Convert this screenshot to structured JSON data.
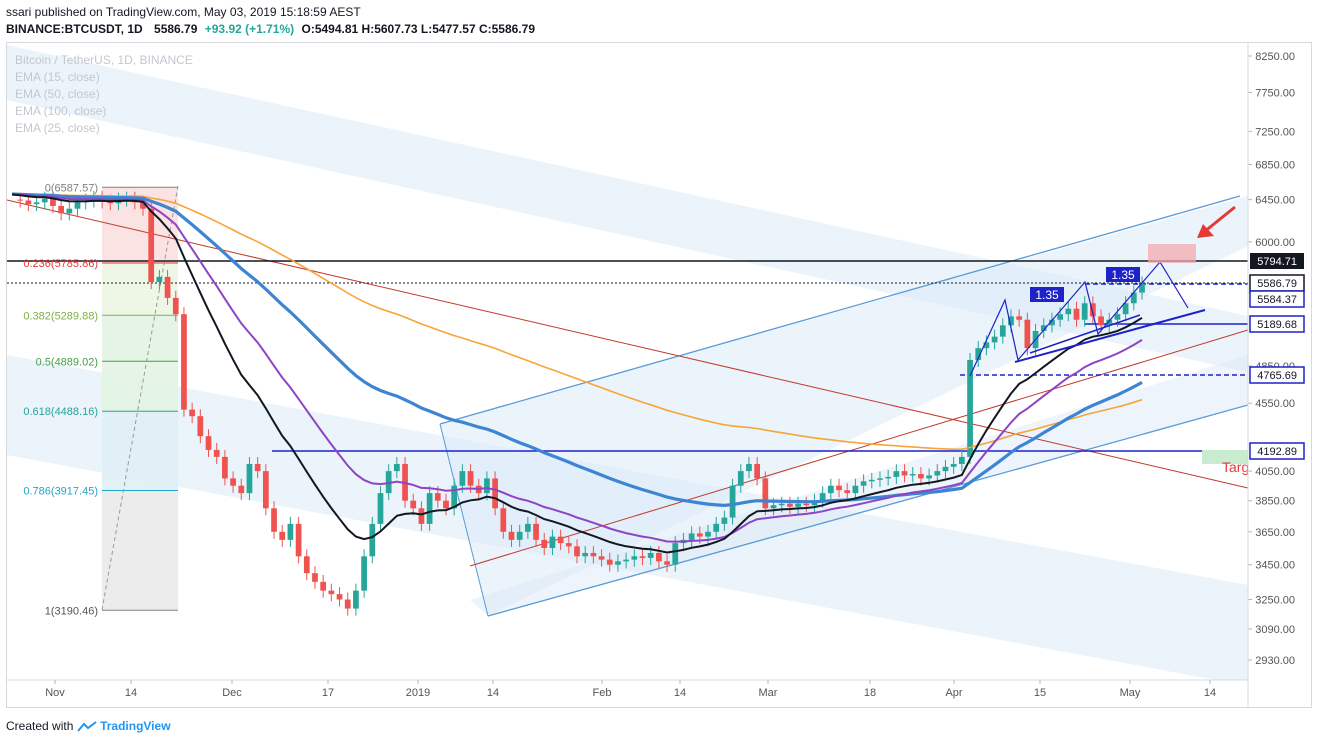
{
  "header": {
    "publisher_line": "ssari published on TradingView.com, May 03, 2019 15:18:59 AEST",
    "symbol": "BINANCE:BTCUSDT, 1D",
    "last": "5586.79",
    "change": "+93.92 (+1.71%)",
    "ohlc": "O:5494.81 H:5607.73 L:5477.57 C:5586.79"
  },
  "legend": {
    "title": "Bitcoin / TetherUS, 1D, BINANCE",
    "studies": [
      "EMA (15, close)",
      "EMA (50, close)",
      "EMA (100, close)",
      "EMA (25, close)"
    ]
  },
  "footer": {
    "prefix": "Created with",
    "brand": "TradingView"
  },
  "colors": {
    "up": "#26a69a",
    "down": "#ef5350",
    "ema15": "#131722",
    "ema25": "#8e44c4",
    "ema50": "#3d85d2",
    "ema100": "#f7a438",
    "channel": "#5b9bd5",
    "pattern": "#1e22c8",
    "level_line": "#1e22c8",
    "red_trend": "#c0392b",
    "accent": "#e53935"
  },
  "price_axis": {
    "ticks": [
      "8250.00",
      "7750.00",
      "7250.00",
      "6850.00",
      "6450.00",
      "6000.00",
      "5500.00",
      "4850.00",
      "4550.00",
      "4050.00",
      "3850.00",
      "3650.00",
      "3450.00",
      "3250.00",
      "3090.00",
      "2930.00"
    ],
    "labels": [
      {
        "text": "5794.71",
        "style": "black"
      },
      {
        "text": "5586.79",
        "style": "outline-dark"
      },
      {
        "text": "5584.37",
        "style": "blue"
      },
      {
        "text": "5189.68",
        "style": "blue"
      },
      {
        "text": "4765.69",
        "style": "blue"
      },
      {
        "text": "4192.89",
        "style": "blue"
      }
    ]
  },
  "time_axis": {
    "ticks": [
      "Nov",
      "14",
      "Dec",
      "17",
      "2019",
      "14",
      "Feb",
      "14",
      "Mar",
      "18",
      "Apr",
      "15",
      "May",
      "14"
    ]
  },
  "fib_levels": [
    {
      "label": "0(6587.57)",
      "value": 6587.57
    },
    {
      "label": "0.236(5785.86)",
      "value": 5785.86
    },
    {
      "label": "0.382(5289.88)",
      "value": 5289.88
    },
    {
      "label": "0.5(4889.02)",
      "value": 4889.02
    },
    {
      "label": "0.618(4488.16)",
      "value": 4488.16
    },
    {
      "label": "0.786(3917.45)",
      "value": 3917.45
    },
    {
      "label": "1(3190.46)",
      "value": 3190.46
    }
  ],
  "annotations": {
    "measure_left": "1.35",
    "measure_right": "1.35",
    "target": "Targ"
  },
  "chart_data": {
    "type": "candlestick",
    "title": "Bitcoin / TetherUS, 1D, BINANCE",
    "x": [
      "Nov 2018",
      "Nov 14",
      "Dec",
      "Dec 17",
      "2019",
      "Jan 14",
      "Feb",
      "Feb 14",
      "Mar",
      "Mar 18",
      "Apr",
      "Apr 15",
      "May",
      "May 14"
    ],
    "ylim": [
      2850,
      8400
    ],
    "y_scale": "log",
    "close_path": [
      6450,
      6440,
      6400,
      6420,
      6460,
      6380,
      6300,
      6350,
      6420,
      6440,
      6470,
      6430,
      6410,
      6450,
      6460,
      6420,
      6350,
      5600,
      5650,
      5450,
      5300,
      4500,
      4450,
      4300,
      4200,
      4150,
      4000,
      3950,
      3900,
      4100,
      4050,
      3800,
      3650,
      3600,
      3700,
      3500,
      3400,
      3350,
      3300,
      3280,
      3250,
      3200,
      3300,
      3500,
      3700,
      3900,
      4050,
      4100,
      3850,
      3800,
      3700,
      3900,
      3850,
      3800,
      3950,
      4050,
      3950,
      3900,
      4000,
      3800,
      3650,
      3600,
      3650,
      3700,
      3600,
      3550,
      3620,
      3580,
      3560,
      3500,
      3520,
      3500,
      3480,
      3450,
      3470,
      3480,
      3500,
      3490,
      3520,
      3470,
      3450,
      3580,
      3600,
      3640,
      3620,
      3650,
      3700,
      3740,
      3950,
      4050,
      4100,
      4000,
      3800,
      3820,
      3830,
      3810,
      3830,
      3820,
      3850,
      3900,
      3950,
      3920,
      3900,
      3950,
      3980,
      3990,
      4000,
      4010,
      4050,
      4020,
      4030,
      4000,
      4020,
      4050,
      4080,
      4100,
      4150,
      4900,
      5000,
      5050,
      5100,
      5200,
      5280,
      5250,
      5000,
      5150,
      5200,
      5250,
      5300,
      5350,
      5250,
      5400,
      5280,
      5200,
      5250,
      5300,
      5400,
      5500,
      5586.79
    ],
    "series": [
      {
        "name": "EMA (15, close)"
      },
      {
        "name": "EMA (25, close)"
      },
      {
        "name": "EMA (50, close)"
      },
      {
        "name": "EMA (100, close)"
      }
    ],
    "horizontal_levels": [
      5794.71,
      5584.37,
      5189.68,
      4765.69,
      4192.89
    ],
    "last_price": 5586.79,
    "grid": false
  }
}
